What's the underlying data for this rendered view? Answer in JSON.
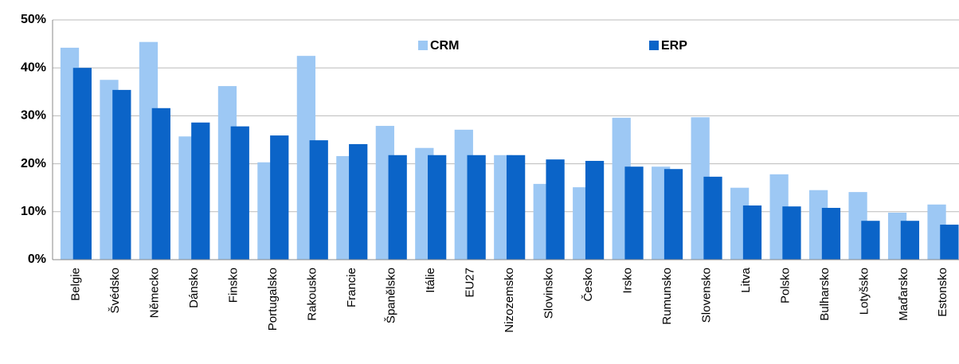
{
  "chart_data": {
    "type": "bar",
    "categories": [
      "Belgie",
      "Švédsko",
      "Německo",
      "Dánsko",
      "Finsko",
      "Portugalsko",
      "Rakousko",
      "Francie",
      "Španělsko",
      "Itálie",
      "EU27",
      "Nizozemsko",
      "Slovinsko",
      "Česko",
      "Irsko",
      "Rumunsko",
      "Slovensko",
      "Litva",
      "Polsko",
      "Bulharsko",
      "Lotyšsko",
      "Maďarsko",
      "Estonsko"
    ],
    "series": [
      {
        "name": "CRM",
        "color": "#9dc8f4",
        "values": [
          44.2,
          37.5,
          45.4,
          25.7,
          36.2,
          20.3,
          42.5,
          21.6,
          27.9,
          23.3,
          27.1,
          21.8,
          15.8,
          15.1,
          29.6,
          19.4,
          29.7,
          15,
          17.8,
          14.5,
          14.1,
          9.8,
          11.5
        ]
      },
      {
        "name": "ERP",
        "color": "#0b64c8",
        "values": [
          40,
          35.4,
          31.6,
          28.6,
          27.8,
          25.9,
          24.9,
          24.1,
          21.8,
          21.8,
          21.8,
          21.8,
          20.9,
          20.6,
          19.4,
          18.9,
          17.3,
          11.3,
          11.1,
          10.8,
          8.1,
          8.1,
          7.3
        ]
      }
    ],
    "ylim": [
      0,
      50
    ],
    "yticks": [
      {
        "value": 0,
        "label": "0%"
      },
      {
        "value": 10,
        "label": "10%"
      },
      {
        "value": 20,
        "label": "20%"
      },
      {
        "value": 30,
        "label": "30%"
      },
      {
        "value": 40,
        "label": "40%"
      },
      {
        "value": 50,
        "label": "50%"
      }
    ],
    "grid": true
  }
}
